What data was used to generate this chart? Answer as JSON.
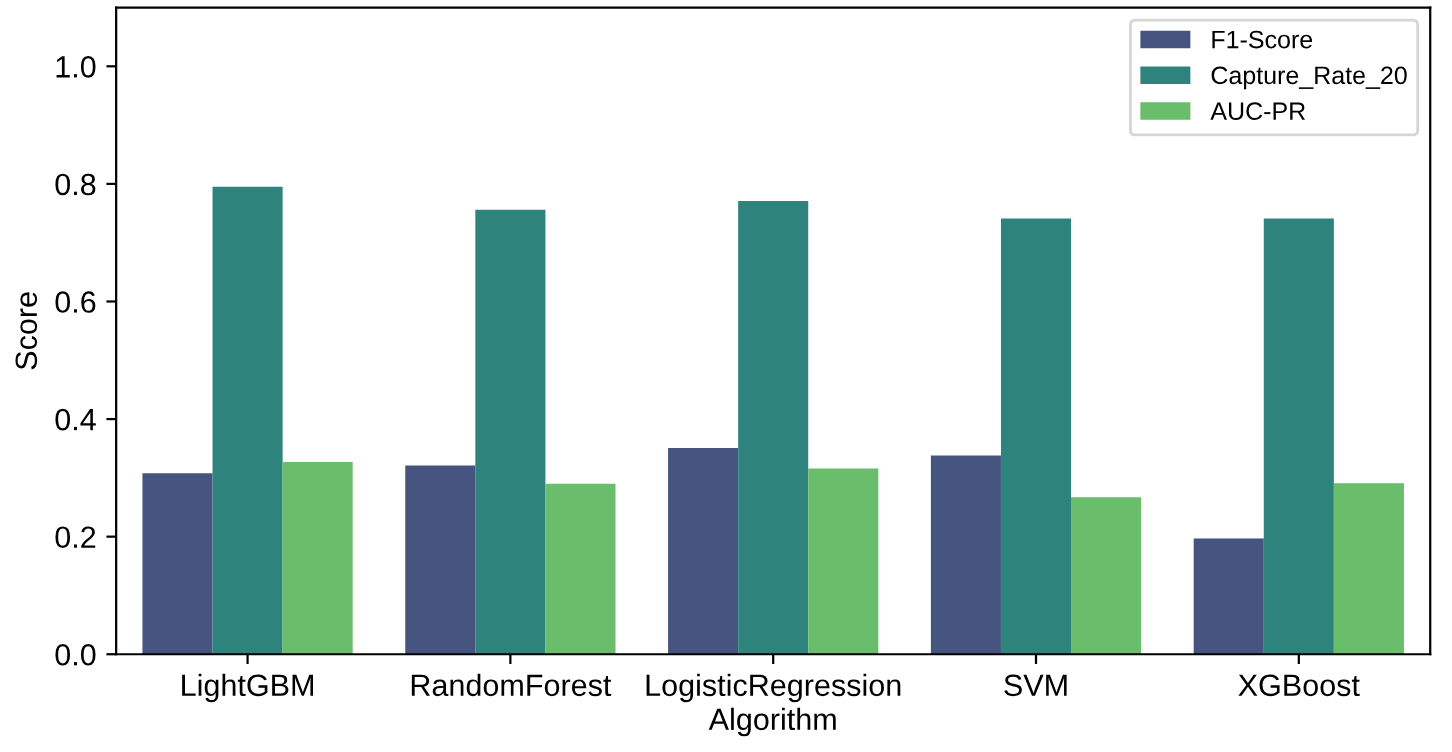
{
  "chart_data": {
    "type": "bar",
    "xlabel": "Algorithm",
    "ylabel": "Score",
    "categories": [
      "LightGBM",
      "RandomForest",
      "LogisticRegression",
      "SVM",
      "XGBoost"
    ],
    "series": [
      {
        "name": "F1-Score",
        "color": "#455580",
        "values": [
          0.308,
          0.321,
          0.351,
          0.338,
          0.197
        ]
      },
      {
        "name": "Capture_Rate_20",
        "color": "#2e837c",
        "values": [
          0.795,
          0.756,
          0.771,
          0.741,
          0.741
        ]
      },
      {
        "name": "AUC-PR",
        "color": "#6abd6a",
        "values": [
          0.327,
          0.29,
          0.316,
          0.267,
          0.291
        ]
      }
    ],
    "ylim": [
      0,
      1.1
    ],
    "yticks": [
      {
        "value": 0,
        "label": "0.0"
      },
      0.2,
      0.4,
      0.6,
      0.8,
      {
        "value": 1,
        "label": "1.0"
      }
    ],
    "grid": false,
    "legend": "top right"
  }
}
